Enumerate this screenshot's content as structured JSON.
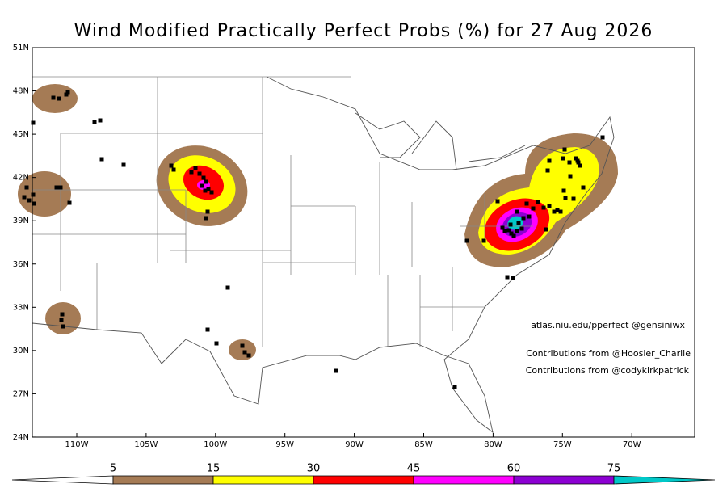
{
  "title": "Wind Modified Practically Perfect Probs (%) for 27 Aug 2026",
  "axes": {
    "lat_labels": [
      "51N",
      "48N",
      "45N",
      "42N",
      "39N",
      "36N",
      "33N",
      "30N",
      "27N",
      "24N"
    ],
    "lon_labels": [
      "110W",
      "105W",
      "100W",
      "95W",
      "90W",
      "85W",
      "80W",
      "75W",
      "70W"
    ]
  },
  "credits": [
    "atlas.niu.edu/pperfect @gensiniwx",
    "Contributions from @Hoosier_Charlie",
    "Contributions from @codykirkpatrick"
  ],
  "legend": {
    "levels": [
      "5",
      "15",
      "30",
      "45",
      "60",
      "75"
    ],
    "colors": [
      "#ffffff",
      "#a57b55",
      "#ffff00",
      "#ff0000",
      "#ff00ff",
      "#8c00d2",
      "#00c8c8"
    ]
  }
}
